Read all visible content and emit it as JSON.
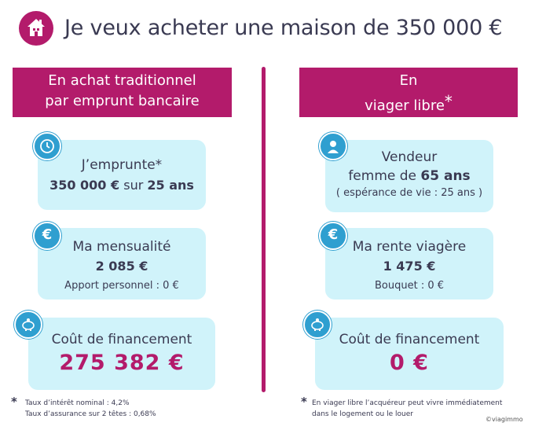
{
  "title": "Je veux acheter une maison de 350 000 €",
  "icons": {
    "header": "house-icon",
    "clock": "clock-icon",
    "euro": "euro-icon",
    "piggy": "piggy-bank-icon",
    "woman": "woman-avatar-icon"
  },
  "colors": {
    "accent": "#b31b6b",
    "card": "#d0f3fa",
    "icon": "#2f9fd0",
    "text": "#3a3a52"
  },
  "left": {
    "header_line1": "En achat traditionnel",
    "header_line2": "par emprunt bancaire",
    "card1": {
      "line1": "J’emprunte*",
      "amount": "350 000 €",
      "sur": "sur",
      "years": "25 ans"
    },
    "card2": {
      "title": "Ma mensualité",
      "amount": "2 085 €",
      "note": "Apport personnel : 0 €"
    },
    "card3": {
      "title": "Coût de financement",
      "amount": "275 382 €"
    },
    "foot_line1": "Taux d’intérêt nominal : 4,2%",
    "foot_line2": "Taux d’assurance sur 2 têtes : 0,68%"
  },
  "right": {
    "header_line1": "En",
    "header_line2": "viager libre",
    "header_star": "*",
    "card1": {
      "line1": "Vendeur",
      "line2_pre": "femme de",
      "age": "65 ans",
      "line3": "( espérance de vie : 25 ans )"
    },
    "card2": {
      "title": "Ma rente viagère",
      "amount": "1 475 €",
      "note": "Bouquet : 0 €"
    },
    "card3": {
      "title": "Coût de financement",
      "amount": "0 €"
    },
    "foot_line1": "En viager libre l’acquéreur peut vivre immédiatement",
    "foot_line2": "dans le logement ou le louer"
  },
  "footnote_star": "*",
  "credit": "©viagimmo"
}
